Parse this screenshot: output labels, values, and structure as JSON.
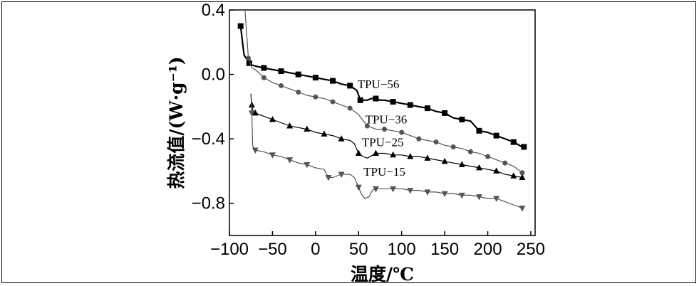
{
  "chart_data": {
    "type": "line",
    "xlabel": "温度/℃",
    "ylabel": "热流值/(W·g⁻¹)",
    "xlim": [
      -100,
      255
    ],
    "ylim": [
      -1.0,
      0.4
    ],
    "xticks": [
      -100,
      -50,
      0,
      50,
      100,
      150,
      200,
      250
    ],
    "yticks": [
      0.4,
      0.0,
      -0.4,
      -0.8
    ],
    "xtick_labels": [
      "−100",
      "−50",
      "0",
      "50",
      "100",
      "150",
      "200",
      "250"
    ],
    "ytick_labels": [
      "0.4",
      "0.0",
      "−0.4",
      "−0.8"
    ],
    "grid": false,
    "legend": "none",
    "series": [
      {
        "name": "TPU−56",
        "marker": "square",
        "color": "#000000",
        "x": [
          -87,
          -83,
          -77,
          -75,
          -69,
          -60,
          -50,
          -40,
          -30,
          -20,
          -10,
          0,
          10,
          20,
          30,
          40,
          48,
          52,
          60,
          65,
          70,
          75,
          80,
          90,
          100,
          110,
          120,
          130,
          140,
          150,
          160,
          170,
          180,
          190,
          200,
          210,
          220,
          230,
          240
        ],
        "y": [
          0.3,
          0.12,
          0.07,
          0.06,
          0.05,
          0.04,
          0.03,
          0.02,
          0.01,
          0.0,
          -0.01,
          -0.02,
          -0.03,
          -0.04,
          -0.06,
          -0.07,
          -0.1,
          -0.16,
          -0.16,
          -0.15,
          -0.15,
          -0.16,
          -0.16,
          -0.17,
          -0.18,
          -0.19,
          -0.2,
          -0.21,
          -0.23,
          -0.24,
          -0.27,
          -0.28,
          -0.29,
          -0.35,
          -0.36,
          -0.38,
          -0.4,
          -0.42,
          -0.45
        ]
      },
      {
        "name": "TPU−36",
        "marker": "circle",
        "color": "#555555",
        "x": [
          -82,
          -78,
          -74,
          -70,
          -60,
          -50,
          -40,
          -30,
          -20,
          -10,
          0,
          10,
          20,
          30,
          40,
          50,
          60,
          70,
          80,
          90,
          100,
          110,
          120,
          130,
          140,
          150,
          160,
          170,
          180,
          190,
          200,
          210,
          220,
          230,
          240
        ],
        "y": [
          0.4,
          0.1,
          0.04,
          0.03,
          -0.02,
          -0.05,
          -0.07,
          -0.09,
          -0.11,
          -0.13,
          -0.14,
          -0.15,
          -0.17,
          -0.19,
          -0.21,
          -0.25,
          -0.32,
          -0.34,
          -0.34,
          -0.35,
          -0.36,
          -0.38,
          -0.4,
          -0.41,
          -0.42,
          -0.44,
          -0.45,
          -0.46,
          -0.48,
          -0.49,
          -0.51,
          -0.53,
          -0.55,
          -0.57,
          -0.61
        ]
      },
      {
        "name": "TPU−25",
        "marker": "triangle-up",
        "color": "#000000",
        "x": [
          -75,
          -74,
          -73,
          -70,
          -60,
          -50,
          -40,
          -30,
          -20,
          -10,
          0,
          10,
          20,
          30,
          40,
          45,
          50,
          55,
          60,
          70,
          80,
          90,
          100,
          110,
          120,
          130,
          140,
          150,
          160,
          170,
          180,
          190,
          200,
          210,
          220,
          230,
          240
        ],
        "y": [
          -0.12,
          -0.19,
          -0.22,
          -0.24,
          -0.26,
          -0.28,
          -0.3,
          -0.32,
          -0.33,
          -0.34,
          -0.36,
          -0.37,
          -0.38,
          -0.4,
          -0.41,
          -0.43,
          -0.49,
          -0.51,
          -0.52,
          -0.49,
          -0.49,
          -0.5,
          -0.5,
          -0.51,
          -0.51,
          -0.52,
          -0.53,
          -0.54,
          -0.55,
          -0.56,
          -0.57,
          -0.58,
          -0.59,
          -0.6,
          -0.62,
          -0.63,
          -0.64
        ]
      },
      {
        "name": "TPU−15",
        "marker": "triangle-down",
        "color": "#555555",
        "x": [
          -75,
          -74,
          -73,
          -70,
          -60,
          -50,
          -40,
          -30,
          -20,
          -10,
          0,
          10,
          15,
          20,
          30,
          40,
          45,
          50,
          53,
          57,
          62,
          66,
          70,
          80,
          90,
          100,
          110,
          120,
          130,
          140,
          150,
          160,
          170,
          180,
          190,
          200,
          210,
          220,
          230,
          240
        ],
        "y": [
          -0.13,
          -0.24,
          -0.44,
          -0.47,
          -0.48,
          -0.5,
          -0.51,
          -0.53,
          -0.55,
          -0.56,
          -0.58,
          -0.59,
          -0.64,
          -0.64,
          -0.62,
          -0.62,
          -0.64,
          -0.7,
          -0.74,
          -0.77,
          -0.76,
          -0.72,
          -0.71,
          -0.71,
          -0.71,
          -0.71,
          -0.72,
          -0.72,
          -0.73,
          -0.73,
          -0.74,
          -0.74,
          -0.75,
          -0.75,
          -0.76,
          -0.77,
          -0.77,
          -0.79,
          -0.81,
          -0.83
        ]
      }
    ],
    "markers": [
      {
        "series": "TPU−56",
        "x": [
          -87,
          -77,
          -60,
          -40,
          -20,
          0,
          20,
          40,
          52,
          70,
          90,
          110,
          130,
          150,
          170,
          190,
          210,
          230,
          242
        ]
      },
      {
        "series": "TPU−36",
        "x": [
          -78,
          -60,
          -40,
          -20,
          0,
          20,
          40,
          60,
          80,
          100,
          120,
          140,
          160,
          180,
          200,
          220,
          240
        ]
      },
      {
        "series": "TPU−25",
        "x": [
          -74,
          -70,
          -50,
          -30,
          -10,
          10,
          30,
          50,
          70,
          90,
          110,
          130,
          150,
          170,
          190,
          210,
          230,
          240
        ]
      },
      {
        "series": "TPU−15",
        "x": [
          -74,
          -70,
          -50,
          -30,
          -10,
          15,
          30,
          50,
          70,
          90,
          110,
          130,
          150,
          170,
          190,
          210,
          240
        ]
      }
    ],
    "annotations": [
      {
        "text": "TPU−56",
        "x": 73,
        "y": -0.085
      },
      {
        "text": "TPU−36",
        "x": 82,
        "y": -0.305
      },
      {
        "text": "TPU−25",
        "x": 78,
        "y": -0.445
      },
      {
        "text": "TPU−15",
        "x": 80,
        "y": -0.63
      }
    ]
  }
}
